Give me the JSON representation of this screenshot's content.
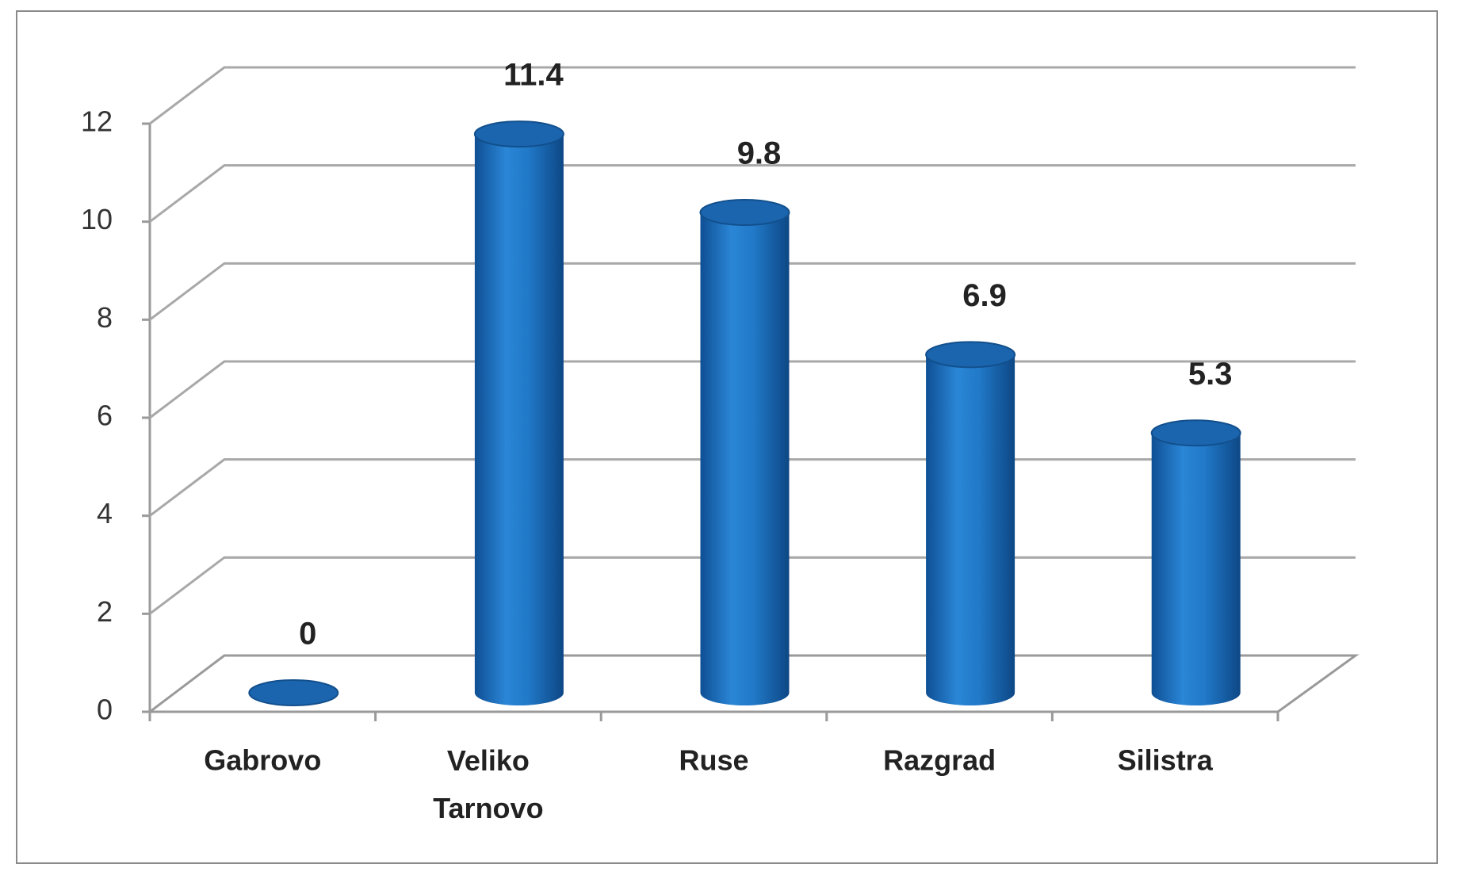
{
  "chart_data": {
    "type": "bar3d",
    "categories": [
      "Gabrovo",
      "Veliko Tarnovo",
      "Ruse",
      "Razgrad",
      "Silistra"
    ],
    "values": [
      0,
      11.4,
      9.8,
      6.9,
      5.3
    ],
    "color": "#1f6fbf",
    "ylim": [
      0,
      12
    ],
    "yticks": [
      0,
      2,
      4,
      6,
      8,
      10,
      12
    ],
    "grid": true
  }
}
